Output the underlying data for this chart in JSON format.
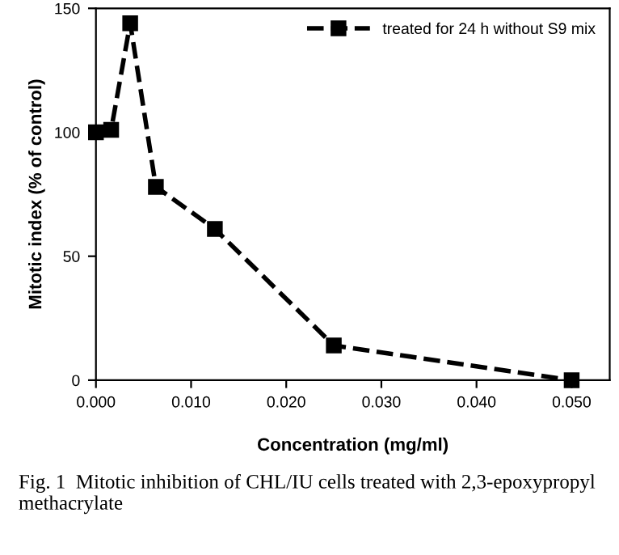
{
  "chart_data": {
    "type": "line",
    "xlabel": "Concentration (mg/ml)",
    "ylabel": "Mitotic index (% of control)",
    "x": [
      0,
      0.0016,
      0.0036,
      0.0063,
      0.0125,
      0.025,
      0.05
    ],
    "series": [
      {
        "name": "treated for 24 h without S9 mix",
        "color": "#000000",
        "values": [
          100,
          101,
          144,
          78,
          61,
          14,
          0
        ]
      }
    ],
    "xlim": [
      0,
      0.054
    ],
    "xticks": [
      {
        "value": 0,
        "label": "0.000"
      },
      {
        "value": 0.01,
        "label": "0.010"
      },
      {
        "value": 0.02,
        "label": "0.020"
      },
      {
        "value": 0.03,
        "label": "0.030"
      },
      {
        "value": 0.04,
        "label": "0.040"
      },
      {
        "value": 0.05,
        "label": "0.050"
      }
    ],
    "ylim": [
      0,
      150
    ],
    "yticks": [
      0,
      50,
      100,
      150
    ],
    "marker": "square",
    "line_style": "dashed",
    "legend": "top right",
    "grid": false,
    "annotations": [
      "Fig. 1  Mitotic inhibition of CHL/IU cells treated with 2,3-epoxypropyl methacrylate"
    ]
  }
}
